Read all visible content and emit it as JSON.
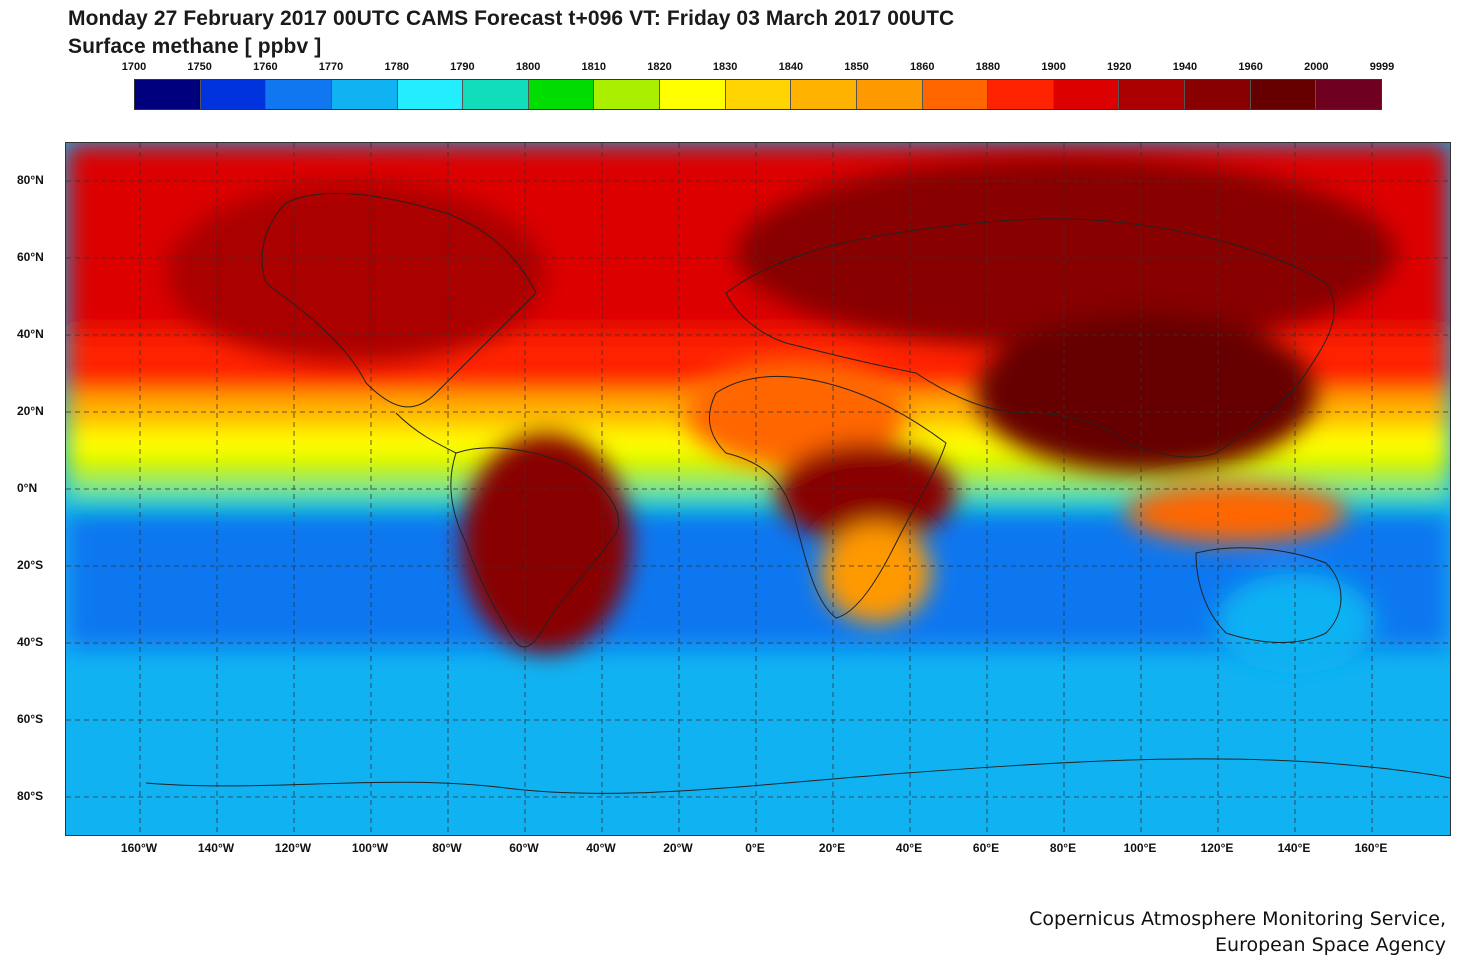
{
  "header": {
    "title_line1": "Monday 27 February 2017 00UTC CAMS Forecast t+096 VT: Friday 03 March 2017 00UTC",
    "title_line2": "Surface methane [ ppbv ]"
  },
  "colorbar": {
    "levels": [
      "1700",
      "1750",
      "1760",
      "1770",
      "1780",
      "1790",
      "1800",
      "1810",
      "1820",
      "1830",
      "1840",
      "1850",
      "1860",
      "1880",
      "1900",
      "1920",
      "1940",
      "1960",
      "2000",
      "9999"
    ],
    "colors": [
      "#00007f",
      "#0033dd",
      "#1177f0",
      "#11b2f2",
      "#22eeff",
      "#11ddbb",
      "#00dd00",
      "#aaee00",
      "#ffff00",
      "#ffd400",
      "#ffb300",
      "#ff9900",
      "#ff6600",
      "#ff2200",
      "#dd0000",
      "#aa0000",
      "#880000",
      "#660000",
      "#700020"
    ]
  },
  "map": {
    "lat_labels": [
      "80°N",
      "60°N",
      "40°N",
      "20°N",
      "0°N",
      "20°S",
      "40°S",
      "60°S",
      "80°S"
    ],
    "lon_labels": [
      "160°W",
      "140°W",
      "120°W",
      "100°W",
      "80°W",
      "60°W",
      "40°W",
      "20°W",
      "0°E",
      "20°E",
      "40°E",
      "60°E",
      "80°E",
      "100°E",
      "120°E",
      "140°E",
      "160°E"
    ]
  },
  "footer": {
    "credit_line1": "Copernicus Atmosphere Monitoring Service,",
    "credit_line2": "European Space Agency"
  }
}
